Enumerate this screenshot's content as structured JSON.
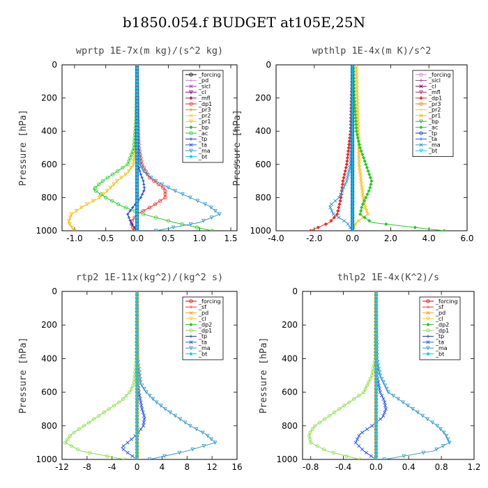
{
  "title": "b1850.054.f  BUDGET at105E,25N",
  "chart_data": [
    {
      "type": "line",
      "title": "wprtp   1E-7x(m kg)/(s^2 kg)",
      "ylabel": "Pressure  [hPa]",
      "ylim": [
        1000,
        0
      ],
      "xlim": [
        -1.2,
        1.6
      ],
      "xticks": [
        -1.0,
        -0.5,
        0.0,
        0.5,
        1.0,
        1.5
      ],
      "xticklabels": [
        "-1.0",
        "-0.5",
        "0.0",
        "0.5",
        "1.0",
        "1.5"
      ],
      "yticks": [
        0,
        200,
        400,
        600,
        800,
        1000
      ],
      "legend": [
        "_forcing",
        "_pd",
        "_sicl",
        "_cl",
        "_mfl",
        "_dp1",
        "_pr3",
        "_pr2",
        "_pr1",
        "_bp",
        "_ac",
        "_tp",
        "_ta",
        "_ma",
        "_bt"
      ],
      "series": [
        {
          "name": "_forcing",
          "color": "#000000",
          "p": [
            0,
            1000
          ],
          "x": [
            0,
            0
          ]
        },
        {
          "name": "_pd",
          "color": "#cc88cc",
          "p": [
            0,
            1000
          ],
          "x": [
            0,
            0
          ]
        },
        {
          "name": "_sicl",
          "color": "#9944aa",
          "p": [
            0,
            1000
          ],
          "x": [
            0,
            0
          ]
        },
        {
          "name": "_cl",
          "color": "#770077",
          "p": [
            0,
            1000
          ],
          "x": [
            0,
            0
          ]
        },
        {
          "name": "_mfl",
          "color": "#aa2255",
          "p": [
            0,
            1000
          ],
          "x": [
            0,
            0
          ]
        },
        {
          "name": "_dp1",
          "color": "#ff2222",
          "p": [
            0,
            300,
            500,
            600,
            680,
            750,
            800,
            850,
            900,
            950,
            1000
          ],
          "x": [
            0,
            0.01,
            0.03,
            0.08,
            0.2,
            0.45,
            0.45,
            0.25,
            0.0,
            -0.1,
            -0.05
          ]
        },
        {
          "name": "_pr3",
          "color": "#ff7700",
          "p": [
            0,
            1000
          ],
          "x": [
            0,
            0
          ]
        },
        {
          "name": "_pr2",
          "color": "#ffcc33",
          "p": [
            0,
            1000
          ],
          "x": [
            0,
            0
          ]
        },
        {
          "name": "_pr1",
          "color": "#ffbb00",
          "p": [
            0,
            300,
            500,
            600,
            650,
            700,
            750,
            800,
            850,
            900,
            950,
            1000
          ],
          "x": [
            0,
            -0.01,
            -0.03,
            -0.06,
            -0.15,
            -0.32,
            -0.45,
            -0.6,
            -0.85,
            -1.05,
            -1.1,
            -1.0
          ]
        },
        {
          "name": "_bp",
          "color": "#33aa33",
          "p": [
            0,
            1000
          ],
          "x": [
            0,
            0
          ]
        },
        {
          "name": "_ac",
          "color": "#22cc22",
          "p": [
            0,
            300,
            500,
            600,
            650,
            700,
            750,
            800,
            850,
            900,
            950,
            1000
          ],
          "x": [
            0,
            -0.01,
            -0.05,
            -0.15,
            -0.35,
            -0.55,
            -0.7,
            -0.5,
            -0.25,
            0.1,
            0.6,
            1.2
          ]
        },
        {
          "name": "_tp",
          "color": "#1133cc",
          "p": [
            0,
            300,
            500,
            600,
            650,
            700,
            750,
            800,
            850,
            900,
            950,
            1000
          ],
          "x": [
            0,
            0.0,
            0.01,
            0.02,
            0.05,
            0.1,
            0.12,
            0.06,
            -0.05,
            -0.15,
            -0.1,
            0.0
          ]
        },
        {
          "name": "_ta",
          "color": "#2255ff",
          "p": [
            0,
            1000
          ],
          "x": [
            0,
            0
          ]
        },
        {
          "name": "_ma",
          "color": "#3399cc",
          "p": [
            0,
            300,
            500,
            600,
            650,
            700,
            750,
            800,
            850,
            900,
            950,
            1000
          ],
          "x": [
            0,
            0.01,
            0.02,
            0.05,
            0.12,
            0.3,
            0.55,
            0.85,
            1.15,
            1.32,
            1.0,
            0.3
          ]
        },
        {
          "name": "_bt",
          "color": "#00ccff",
          "p": [
            0,
            1000
          ],
          "x": [
            0,
            0
          ]
        }
      ]
    },
    {
      "type": "line",
      "title": "wpthlp   1E-4x(m K)/s^2",
      "ylabel": "Pressure  [hPa]",
      "ylim": [
        1000,
        0
      ],
      "xlim": [
        -4.0,
        6.0
      ],
      "xticks": [
        -4.0,
        -2.0,
        0.0,
        2.0,
        4.0,
        6.0
      ],
      "xticklabels": [
        "-4.0",
        "-2.0",
        "0.0",
        "2.0",
        "4.0",
        "6.0"
      ],
      "yticks": [
        0,
        200,
        400,
        600,
        800,
        1000
      ],
      "legend": [
        "_forcing",
        "_sicl",
        "_cl",
        "_mfl",
        "_dp1",
        "_pr3",
        "_pr2",
        "_pr1",
        "_bp",
        "_ac",
        "_tp",
        "_ta",
        "_ma",
        "_bt"
      ],
      "series": [
        {
          "name": "_forcing",
          "color": "#cc88cc",
          "p": [
            0,
            1000
          ],
          "x": [
            0,
            0
          ]
        },
        {
          "name": "_sicl",
          "color": "#9944aa",
          "p": [
            0,
            1000
          ],
          "x": [
            0,
            0
          ]
        },
        {
          "name": "_cl",
          "color": "#770077",
          "p": [
            0,
            1000
          ],
          "x": [
            0,
            0
          ]
        },
        {
          "name": "_mfl",
          "color": "#aa2255",
          "p": [
            0,
            1000
          ],
          "x": [
            0,
            0
          ]
        },
        {
          "name": "_dp1",
          "color": "#ff2222",
          "p": [
            0,
            200,
            400,
            600,
            700,
            800,
            850,
            900,
            950,
            1000
          ],
          "x": [
            0,
            -0.05,
            -0.1,
            -0.3,
            -0.5,
            -0.6,
            -0.7,
            -0.8,
            -1.2,
            -2.2
          ]
        },
        {
          "name": "_pr3",
          "color": "#ff7700",
          "p": [
            0,
            1000
          ],
          "x": [
            0,
            0
          ]
        },
        {
          "name": "_pr2",
          "color": "#ffcc33",
          "p": [
            0,
            1000
          ],
          "x": [
            0,
            0
          ]
        },
        {
          "name": "_pr1",
          "color": "#ffbb00",
          "p": [
            0,
            200,
            400,
            600,
            700,
            800,
            850,
            900,
            950,
            1000
          ],
          "x": [
            0.2,
            0.25,
            0.3,
            0.35,
            0.45,
            0.55,
            0.65,
            0.8,
            0.2,
            0.0
          ]
        },
        {
          "name": "_bp",
          "color": "#33aa33",
          "p": [
            0,
            1000
          ],
          "x": [
            0,
            0
          ]
        },
        {
          "name": "_ac",
          "color": "#22cc22",
          "p": [
            0,
            200,
            400,
            500,
            600,
            700,
            750,
            800,
            850,
            900,
            950,
            1000
          ],
          "x": [
            0.05,
            0.1,
            0.2,
            0.4,
            0.7,
            1.0,
            0.9,
            0.7,
            0.5,
            0.4,
            1.0,
            4.8
          ]
        },
        {
          "name": "_tp",
          "color": "#1133cc",
          "p": [
            0,
            1000
          ],
          "x": [
            0,
            0
          ]
        },
        {
          "name": "_ta",
          "color": "#2255ff",
          "p": [
            0,
            1000
          ],
          "x": [
            0,
            0
          ]
        },
        {
          "name": "_ma",
          "color": "#3399cc",
          "p": [
            0,
            200,
            400,
            600,
            700,
            800,
            850,
            900,
            950,
            1000
          ],
          "x": [
            0,
            -0.02,
            -0.05,
            -0.1,
            -0.3,
            -0.7,
            -1.2,
            -1.0,
            -0.3,
            0.0
          ]
        },
        {
          "name": "_bt",
          "color": "#00ccff",
          "p": [
            0,
            1000
          ],
          "x": [
            0,
            0
          ]
        }
      ]
    },
    {
      "type": "line",
      "title": "rtp2   1E-11x(kg^2)/(kg^2 s)",
      "ylabel": "Pressure  [hPa]",
      "ylim": [
        1000,
        0
      ],
      "xlim": [
        -12,
        16
      ],
      "xticks": [
        -12,
        -8,
        -4,
        0,
        4,
        8,
        12,
        16
      ],
      "xticklabels": [
        "-12",
        "-8",
        "-4",
        "0",
        "4",
        "8",
        "12",
        "16"
      ],
      "yticks": [
        0,
        200,
        400,
        600,
        800,
        1000
      ],
      "legend": [
        "_forcing",
        "_sf",
        "_pd",
        "_cl",
        "_dp2",
        "_dp1",
        "_tp",
        "_ta",
        "_ma",
        "_bt"
      ],
      "series": [
        {
          "name": "_forcing",
          "color": "#dd0000",
          "p": [
            0,
            1000
          ],
          "x": [
            0,
            0
          ]
        },
        {
          "name": "_sf",
          "color": "#ff3333",
          "p": [
            0,
            1000
          ],
          "x": [
            0,
            0
          ]
        },
        {
          "name": "_pd",
          "color": "#ff9922",
          "p": [
            0,
            1000
          ],
          "x": [
            0,
            0
          ]
        },
        {
          "name": "_cl",
          "color": "#ffcc00",
          "p": [
            0,
            1000
          ],
          "x": [
            0,
            0
          ]
        },
        {
          "name": "_dp2",
          "color": "#33bb33",
          "p": [
            0,
            1000
          ],
          "x": [
            0,
            0
          ]
        },
        {
          "name": "_dp1",
          "color": "#88dd44",
          "p": [
            0,
            400,
            550,
            600,
            650,
            700,
            750,
            800,
            850,
            900,
            950,
            1000
          ],
          "x": [
            0,
            -0.1,
            -0.5,
            -1.2,
            -2.5,
            -4.5,
            -6.5,
            -8.5,
            -10.5,
            -11.5,
            -9.0,
            -2.0
          ]
        },
        {
          "name": "_tp",
          "color": "#1133cc",
          "p": [
            0,
            1000
          ],
          "x": [
            0,
            0
          ]
        },
        {
          "name": "_ta",
          "color": "#2255ff",
          "p": [
            0,
            500,
            600,
            700,
            750,
            800,
            850,
            900,
            930,
            960,
            1000
          ],
          "x": [
            0,
            0.05,
            0.3,
            0.8,
            1.2,
            1.0,
            0.0,
            -1.5,
            -2.5,
            -1.5,
            0.0
          ]
        },
        {
          "name": "_ma",
          "color": "#3399cc",
          "p": [
            0,
            400,
            550,
            600,
            650,
            700,
            750,
            800,
            850,
            900,
            950,
            1000
          ],
          "x": [
            0,
            0.1,
            0.6,
            1.5,
            2.8,
            4.5,
            6.5,
            8.5,
            11.0,
            12.5,
            8.0,
            2.0
          ]
        },
        {
          "name": "_bt",
          "color": "#00ccff",
          "p": [
            0,
            1000
          ],
          "x": [
            0,
            0
          ]
        }
      ]
    },
    {
      "type": "line",
      "title": "thlp2   1E-4x(K^2)/s",
      "ylabel": "Pressure  [hPa]",
      "ylim": [
        1000,
        0
      ],
      "xlim": [
        -0.9,
        1.2
      ],
      "xticks": [
        -0.8,
        -0.4,
        0.0,
        0.4,
        0.8,
        1.2
      ],
      "xticklabels": [
        "-0.8",
        "-0.4",
        "0.0",
        "0.4",
        "0.8",
        "1.2"
      ],
      "yticks": [
        0,
        200,
        400,
        600,
        800,
        1000
      ],
      "legend": [
        "_forcing",
        "_sf",
        "_pd",
        "_cl",
        "_dp2",
        "_dp1",
        "_tp",
        "_ta",
        "_ma",
        "_bt"
      ],
      "series": [
        {
          "name": "_forcing",
          "color": "#dd0000",
          "p": [
            0,
            1000
          ],
          "x": [
            0,
            0
          ]
        },
        {
          "name": "_sf",
          "color": "#ff3333",
          "p": [
            0,
            1000
          ],
          "x": [
            0,
            0
          ]
        },
        {
          "name": "_pd",
          "color": "#ff9922",
          "p": [
            0,
            1000
          ],
          "x": [
            0,
            0
          ]
        },
        {
          "name": "_cl",
          "color": "#ffcc00",
          "p": [
            0,
            1000
          ],
          "x": [
            0,
            0
          ]
        },
        {
          "name": "_dp2",
          "color": "#33bb33",
          "p": [
            0,
            1000
          ],
          "x": [
            0,
            0
          ]
        },
        {
          "name": "_dp1",
          "color": "#88dd44",
          "p": [
            0,
            400,
            500,
            600,
            650,
            700,
            750,
            800,
            850,
            900,
            950,
            1000
          ],
          "x": [
            0,
            -0.01,
            -0.05,
            -0.15,
            -0.3,
            -0.45,
            -0.6,
            -0.75,
            -0.82,
            -0.8,
            -0.6,
            -0.2
          ]
        },
        {
          "name": "_tp",
          "color": "#1133cc",
          "p": [
            0,
            1000
          ],
          "x": [
            0,
            0
          ]
        },
        {
          "name": "_ta",
          "color": "#2255ff",
          "p": [
            0,
            500,
            600,
            650,
            700,
            750,
            800,
            850,
            900,
            950,
            1000
          ],
          "x": [
            0,
            0.01,
            0.05,
            0.1,
            0.12,
            0.08,
            -0.05,
            -0.2,
            -0.25,
            -0.15,
            0.0
          ]
        },
        {
          "name": "_ma",
          "color": "#3399cc",
          "p": [
            0,
            400,
            500,
            600,
            650,
            700,
            750,
            800,
            850,
            900,
            950,
            1000
          ],
          "x": [
            0,
            0.01,
            0.05,
            0.15,
            0.3,
            0.45,
            0.6,
            0.75,
            0.85,
            0.9,
            0.7,
            0.1
          ]
        },
        {
          "name": "_bt",
          "color": "#00ccff",
          "p": [
            0,
            1000
          ],
          "x": [
            0,
            0
          ]
        }
      ]
    }
  ]
}
